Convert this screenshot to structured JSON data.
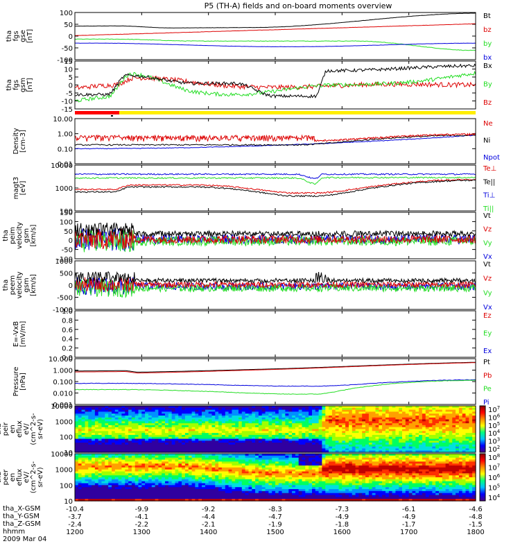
{
  "title": "P5 (TH-A) fields and on-board moments overview",
  "colors": {
    "black": "#000000",
    "red": "#dd0000",
    "green": "#22dd22",
    "blue": "#0000dd",
    "yellow": "#ffee00"
  },
  "chart_data": {
    "type": "line",
    "x_axis": {
      "start": 1200,
      "end": 1800,
      "tick_labels": [
        "1200",
        "1300",
        "1400",
        "1500",
        "1600",
        "1700",
        "1800"
      ],
      "ephemeris": [
        {
          "name": "tha_X-GSM",
          "values": [
            "-10.4",
            "-9.9",
            "-9.2",
            "-8.3",
            "-7.3",
            "-6.1",
            "-4.6"
          ]
        },
        {
          "name": "tha_Y-GSM",
          "values": [
            "-3.7",
            "-4.1",
            "-4.4",
            "-4.7",
            "-4.9",
            "-4.9",
            "-4.8"
          ]
        },
        {
          "name": "tha_Z-GSM",
          "values": [
            "-2.4",
            "-2.2",
            "-2.1",
            "-1.9",
            "-1.8",
            "-1.7",
            "-1.5"
          ]
        },
        {
          "name": "hhmm",
          "values": []
        }
      ],
      "date": "2009 Mar 04"
    },
    "panels": [
      {
        "id": "fgs-gse",
        "ylabel": [
          "tha",
          "fgs",
          "gse",
          "[nT]"
        ],
        "yticks": [
          "100",
          "50",
          "0",
          "-50",
          "-100"
        ],
        "ylim": [
          -100,
          100
        ],
        "legend": [
          {
            "name": "Bt",
            "color": "black"
          },
          {
            "name": "bz",
            "color": "red"
          },
          {
            "name": "by",
            "color": "green"
          },
          {
            "name": "bx",
            "color": "blue"
          }
        ]
      },
      {
        "id": "fgs-gsm",
        "ylabel": [
          "tha",
          "fgs",
          "gsm",
          "[nT]"
        ],
        "yticks": [
          "15",
          "10",
          "5",
          "0",
          "-5",
          "-10",
          "-15"
        ],
        "ylim": [
          -15,
          15
        ],
        "legend": [
          {
            "name": "Bx",
            "color": "black"
          },
          {
            "name": "By",
            "color": "green"
          },
          {
            "name": "Bz",
            "color": "red"
          }
        ]
      },
      {
        "id": "density",
        "ylabel": [
          "Density",
          "[cm-3]"
        ],
        "yticks": [
          "10.00",
          "1.00",
          "0.10",
          "0.01"
        ],
        "log": true,
        "legend": [
          {
            "name": "Ne",
            "color": "red"
          },
          {
            "name": "Ni",
            "color": "black"
          },
          {
            "name": "Npot",
            "color": "blue"
          }
        ]
      },
      {
        "id": "temperature",
        "ylabel": [
          "magt3",
          "[eV]"
        ],
        "yticks": [
          "10000",
          "1000",
          "100"
        ],
        "log": true,
        "legend": [
          {
            "name": "Te⊥",
            "color": "red"
          },
          {
            "name": "Te||",
            "color": "black"
          },
          {
            "name": "Ti⊥",
            "color": "blue"
          },
          {
            "name": "Ti||",
            "color": "green"
          }
        ]
      },
      {
        "id": "peim-velocity",
        "ylabel": [
          "tha",
          "peim",
          "velocity",
          "gsm",
          "[km/s]"
        ],
        "yticks": [
          "150",
          "100",
          "50",
          "0",
          "-50",
          "-100"
        ],
        "ylim": [
          -100,
          150
        ],
        "legend": [
          {
            "name": "Vt",
            "color": "black"
          },
          {
            "name": "Vz",
            "color": "red"
          },
          {
            "name": "Vy",
            "color": "green"
          },
          {
            "name": "Vx",
            "color": "blue"
          }
        ]
      },
      {
        "id": "peem-velocity",
        "ylabel": [
          "tha",
          "peem",
          "velocity",
          "gsm",
          "[km/s]"
        ],
        "yticks": [
          "1000",
          "500",
          "0",
          "-500",
          "-1000"
        ],
        "ylim": [
          -1000,
          1000
        ],
        "legend": [
          {
            "name": "Vt",
            "color": "black"
          },
          {
            "name": "Vz",
            "color": "red"
          },
          {
            "name": "Vy",
            "color": "green"
          },
          {
            "name": "Vx",
            "color": "blue"
          }
        ]
      },
      {
        "id": "efield",
        "ylabel": [
          "E=-VxB",
          "[mV/m]"
        ],
        "yticks": [
          "1.0",
          "0.8",
          "0.6",
          "0.4",
          "0.2",
          "0.0"
        ],
        "ylim": [
          0,
          1
        ],
        "legend": [
          {
            "name": "Ez",
            "color": "red"
          },
          {
            "name": "Ey",
            "color": "green"
          },
          {
            "name": "Ex",
            "color": "blue"
          }
        ]
      },
      {
        "id": "pressure",
        "ylabel": [
          "Pressure",
          "[nPa]"
        ],
        "yticks": [
          "10.000",
          "1.000",
          "0.100",
          "0.010",
          "0.001"
        ],
        "log": true,
        "legend": [
          {
            "name": "Pt",
            "color": "black"
          },
          {
            "name": "Pb",
            "color": "red"
          },
          {
            "name": "Pe",
            "color": "green"
          },
          {
            "name": "Pi",
            "color": "blue"
          }
        ]
      },
      {
        "id": "peir-spectrogram",
        "ylabel": [
          "tha",
          "peir",
          "en",
          "eflux",
          "eV/",
          "(cm^2-s-",
          "sr-eV)"
        ],
        "yticks": [
          "10000",
          "1000",
          "100",
          "10"
        ],
        "colorbar": [
          "10^7",
          "10^6",
          "10^5",
          "10^4",
          "10^3",
          "10^2"
        ]
      },
      {
        "id": "peer-spectrogram",
        "ylabel": [
          "tha",
          "peer",
          "en",
          "eflux",
          "eV/",
          "(cm^2-s-",
          "sr-eV)"
        ],
        "yticks": [
          "10000",
          "1000",
          "100",
          "10"
        ],
        "colorbar": [
          "10^8",
          "10^7",
          "10^6",
          "10^5",
          "10^4"
        ]
      }
    ]
  }
}
